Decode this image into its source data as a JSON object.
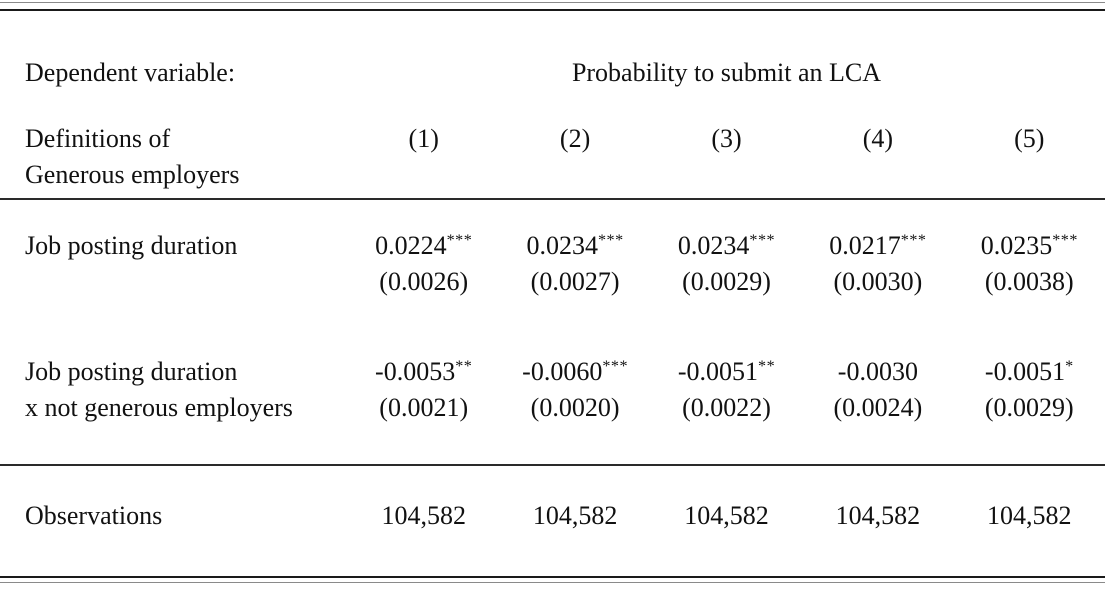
{
  "table": {
    "dependent_variable": {
      "label": "Dependent variable:",
      "value": "Probability to submit an LCA"
    },
    "row_header": {
      "line1": "Definitions of",
      "line2": "Generous employers"
    },
    "columns": [
      "(1)",
      "(2)",
      "(3)",
      "(4)",
      "(5)"
    ],
    "rows": [
      {
        "label_line1": "Job posting duration",
        "label_line2": "",
        "cells": [
          {
            "coef": "0.0224",
            "stars": "***",
            "se": "(0.0026)"
          },
          {
            "coef": "0.0234",
            "stars": "***",
            "se": "(0.0027)"
          },
          {
            "coef": "0.0234",
            "stars": "***",
            "se": "(0.0029)"
          },
          {
            "coef": "0.0217",
            "stars": "***",
            "se": "(0.0030)"
          },
          {
            "coef": "0.0235",
            "stars": "***",
            "se": "(0.0038)"
          }
        ]
      },
      {
        "label_line1": "Job posting duration",
        "label_line2": "x not generous employers",
        "cells": [
          {
            "coef": "-0.0053",
            "stars": "**",
            "se": "(0.0021)"
          },
          {
            "coef": "-0.0060",
            "stars": "***",
            "se": "(0.0020)"
          },
          {
            "coef": "-0.0051",
            "stars": "**",
            "se": "(0.0022)"
          },
          {
            "coef": "-0.0030",
            "stars": "",
            "se": "(0.0024)"
          },
          {
            "coef": "-0.0051",
            "stars": "*",
            "se": "(0.0029)"
          }
        ]
      }
    ],
    "observations": {
      "label": "Observations",
      "values": [
        "104,582",
        "104,582",
        "104,582",
        "104,582",
        "104,582"
      ]
    }
  }
}
